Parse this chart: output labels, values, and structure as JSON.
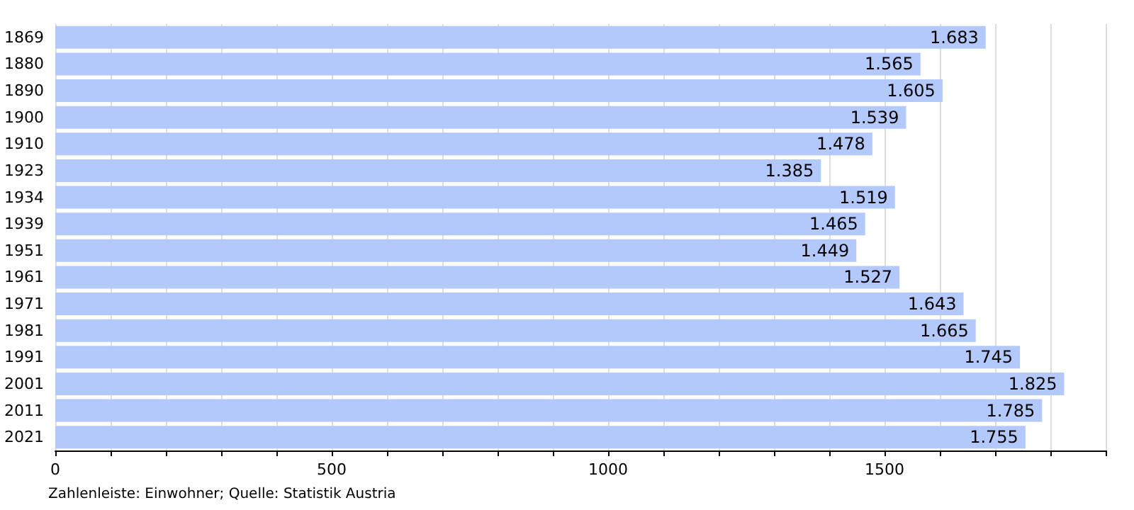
{
  "chart_data": {
    "type": "bar",
    "orientation": "horizontal",
    "categories": [
      "1869",
      "1880",
      "1890",
      "1900",
      "1910",
      "1923",
      "1934",
      "1939",
      "1951",
      "1961",
      "1971",
      "1981",
      "1991",
      "2001",
      "2011",
      "2021"
    ],
    "values": [
      1683,
      1565,
      1605,
      1539,
      1478,
      1385,
      1519,
      1465,
      1449,
      1527,
      1643,
      1665,
      1745,
      1825,
      1785,
      1755
    ],
    "value_labels": [
      "1.683",
      "1.565",
      "1.605",
      "1.539",
      "1.478",
      "1.385",
      "1.519",
      "1.465",
      "1.449",
      "1.527",
      "1.643",
      "1.665",
      "1.745",
      "1.825",
      "1.785",
      "1.755"
    ],
    "color": "#b3c8fb",
    "xlim": [
      0,
      1900
    ],
    "xticks": [
      0,
      {
        "value": 100,
        "label": null
      },
      {
        "value": 200,
        "label": null
      },
      {
        "value": 300,
        "label": null
      },
      {
        "value": 400,
        "label": null
      },
      500,
      {
        "value": 600,
        "label": null
      },
      {
        "value": 700,
        "label": null
      },
      {
        "value": 800,
        "label": null
      },
      {
        "value": 900,
        "label": null
      },
      1000,
      {
        "value": 1100,
        "label": null
      },
      {
        "value": 1200,
        "label": null
      },
      {
        "value": 1300,
        "label": null
      },
      {
        "value": 1400,
        "label": null
      },
      1500,
      {
        "value": 1600,
        "label": null
      },
      {
        "value": 1700,
        "label": null
      },
      {
        "value": 1800,
        "label": null
      },
      {
        "value": 1900,
        "label": null
      }
    ],
    "grid": "x",
    "annotations": [
      "Zahlenleiste: Einwohner; Quelle: Statistik Austria"
    ]
  }
}
